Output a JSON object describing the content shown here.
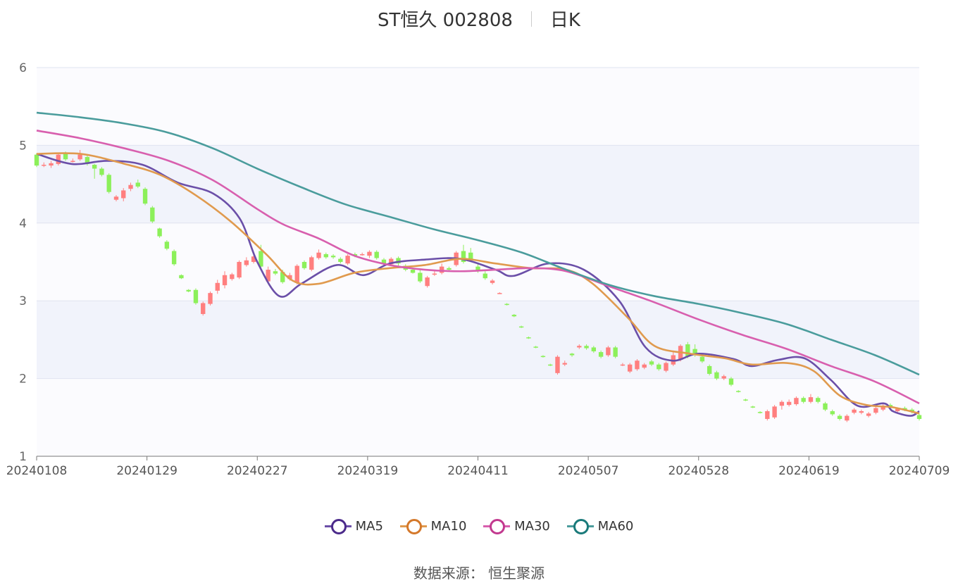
{
  "title": {
    "name": "ST恒久 002808",
    "period": "日K"
  },
  "source": {
    "label": "数据来源：",
    "value": "恒生聚源"
  },
  "chart_data": {
    "type": "candlestick",
    "title": "ST恒久 002808",
    "subtitle": "日K",
    "y_ticks": [
      "1",
      "2",
      "3",
      "4",
      "5",
      "6"
    ],
    "ylim": [
      1,
      6
    ],
    "x_ticks": [
      "20240108",
      "20240129",
      "20240227",
      "20240319",
      "20240411",
      "20240507",
      "20240528",
      "20240619",
      "20240709"
    ],
    "grid": true,
    "legend_position": "bottom",
    "colors": {
      "up": "#ff7f7f",
      "down": "#8cf05a",
      "MA5": "#6b4fa8",
      "MA10": "#e09a4e",
      "MA30": "#d85fae",
      "MA60": "#4a9c9c"
    },
    "legend": [
      {
        "name": "MA5",
        "color": "#4b2a8a"
      },
      {
        "name": "MA10",
        "color": "#d4782a"
      },
      {
        "name": "MA30",
        "color": "#c2398f"
      },
      {
        "name": "MA60",
        "color": "#1a7a7a"
      }
    ],
    "candles": [
      [
        4.88,
        4.74,
        4.9,
        4.72
      ],
      [
        4.75,
        4.75,
        4.78,
        4.72
      ],
      [
        4.74,
        4.77,
        4.8,
        4.71
      ],
      [
        4.76,
        4.88,
        4.9,
        4.74
      ],
      [
        4.9,
        4.82,
        4.92,
        4.8
      ],
      [
        4.8,
        4.8,
        4.83,
        4.78
      ],
      [
        4.82,
        4.88,
        4.94,
        4.8
      ],
      [
        4.85,
        4.76,
        4.87,
        4.74
      ],
      [
        4.75,
        4.7,
        4.76,
        4.57
      ],
      [
        4.7,
        4.62,
        4.72,
        4.6
      ],
      [
        4.62,
        4.4,
        4.64,
        4.38
      ],
      [
        4.3,
        4.34,
        4.36,
        4.28
      ],
      [
        4.32,
        4.42,
        4.45,
        4.28
      ],
      [
        4.44,
        4.49,
        4.52,
        4.41
      ],
      [
        4.52,
        4.47,
        4.56,
        4.45
      ],
      [
        4.44,
        4.25,
        4.46,
        4.23
      ],
      [
        4.2,
        4.02,
        4.22,
        4.0
      ],
      [
        3.93,
        3.83,
        3.94,
        3.81
      ],
      [
        3.76,
        3.67,
        3.78,
        3.65
      ],
      [
        3.64,
        3.47,
        3.66,
        3.45
      ],
      [
        3.33,
        3.29,
        3.34,
        3.28
      ],
      [
        3.14,
        3.12,
        3.15,
        3.11
      ],
      [
        3.14,
        2.97,
        3.16,
        2.95
      ],
      [
        2.83,
        2.97,
        2.99,
        2.81
      ],
      [
        2.96,
        3.1,
        3.12,
        2.94
      ],
      [
        3.13,
        3.23,
        3.27,
        3.09
      ],
      [
        3.2,
        3.33,
        3.38,
        3.16
      ],
      [
        3.28,
        3.34,
        3.36,
        3.26
      ],
      [
        3.3,
        3.5,
        3.52,
        3.28
      ],
      [
        3.46,
        3.52,
        3.56,
        3.44
      ],
      [
        3.5,
        3.57,
        3.6,
        3.48
      ],
      [
        3.64,
        3.44,
        3.72,
        3.42
      ],
      [
        3.25,
        3.4,
        3.44,
        3.23
      ],
      [
        3.38,
        3.35,
        3.41,
        3.33
      ],
      [
        3.37,
        3.24,
        3.4,
        3.22
      ],
      [
        3.28,
        3.33,
        3.36,
        3.26
      ],
      [
        3.23,
        3.45,
        3.47,
        3.21
      ],
      [
        3.5,
        3.42,
        3.52,
        3.4
      ],
      [
        3.4,
        3.56,
        3.58,
        3.38
      ],
      [
        3.55,
        3.62,
        3.66,
        3.53
      ],
      [
        3.6,
        3.56,
        3.62,
        3.54
      ],
      [
        3.58,
        3.56,
        3.6,
        3.54
      ],
      [
        3.54,
        3.5,
        3.56,
        3.48
      ],
      [
        3.48,
        3.58,
        3.6,
        3.46
      ],
      [
        3.6,
        3.58,
        3.62,
        3.56
      ],
      [
        3.6,
        3.6,
        3.62,
        3.58
      ],
      [
        3.58,
        3.63,
        3.65,
        3.55
      ],
      [
        3.63,
        3.55,
        3.65,
        3.53
      ],
      [
        3.53,
        3.48,
        3.55,
        3.45
      ],
      [
        3.47,
        3.54,
        3.56,
        3.45
      ],
      [
        3.55,
        3.48,
        3.57,
        3.45
      ],
      [
        3.45,
        3.4,
        3.47,
        3.38
      ],
      [
        3.4,
        3.36,
        3.42,
        3.35
      ],
      [
        3.36,
        3.25,
        3.4,
        3.23
      ],
      [
        3.19,
        3.3,
        3.32,
        3.17
      ],
      [
        3.34,
        3.35,
        3.4,
        3.32
      ],
      [
        3.36,
        3.44,
        3.48,
        3.34
      ],
      [
        3.42,
        3.4,
        3.44,
        3.38
      ],
      [
        3.46,
        3.62,
        3.64,
        3.44
      ],
      [
        3.64,
        3.5,
        3.72,
        3.48
      ],
      [
        3.62,
        3.52,
        3.68,
        3.5
      ],
      [
        3.44,
        3.38,
        3.47,
        3.36
      ],
      [
        3.35,
        3.29,
        3.38,
        3.27
      ],
      [
        3.23,
        3.26,
        3.28,
        3.21
      ],
      [
        3.1,
        3.1,
        3.11,
        3.09
      ],
      [
        2.96,
        2.95,
        2.97,
        2.94
      ],
      [
        2.82,
        2.8,
        2.83,
        2.79
      ],
      [
        2.67,
        2.66,
        2.68,
        2.65
      ],
      [
        2.53,
        2.52,
        2.54,
        2.51
      ],
      [
        2.41,
        2.4,
        2.42,
        2.39
      ],
      [
        2.29,
        2.28,
        2.3,
        2.27
      ],
      [
        2.18,
        2.17,
        2.19,
        2.16
      ],
      [
        2.07,
        2.28,
        2.3,
        2.05
      ],
      [
        2.18,
        2.2,
        2.23,
        2.16
      ],
      [
        2.32,
        2.3,
        2.33,
        2.28
      ],
      [
        2.4,
        2.42,
        2.44,
        2.38
      ],
      [
        2.42,
        2.39,
        2.44,
        2.37
      ],
      [
        2.4,
        2.35,
        2.42,
        2.33
      ],
      [
        2.34,
        2.28,
        2.36,
        2.26
      ],
      [
        2.3,
        2.4,
        2.42,
        2.28
      ],
      [
        2.4,
        2.28,
        2.42,
        2.26
      ],
      [
        2.18,
        2.18,
        2.2,
        2.16
      ],
      [
        2.09,
        2.18,
        2.2,
        2.07
      ],
      [
        2.12,
        2.23,
        2.25,
        2.1
      ],
      [
        2.14,
        2.18,
        2.2,
        2.12
      ],
      [
        2.22,
        2.18,
        2.24,
        2.16
      ],
      [
        2.18,
        2.12,
        2.2,
        2.1
      ],
      [
        2.1,
        2.2,
        2.22,
        2.08
      ],
      [
        2.18,
        2.3,
        2.36,
        2.16
      ],
      [
        2.24,
        2.42,
        2.44,
        2.22
      ],
      [
        2.44,
        2.28,
        2.47,
        2.26
      ],
      [
        2.38,
        2.3,
        2.44,
        2.28
      ],
      [
        2.28,
        2.22,
        2.3,
        2.2
      ],
      [
        2.16,
        2.06,
        2.18,
        2.04
      ],
      [
        2.08,
        2.0,
        2.1,
        1.98
      ],
      [
        2.0,
        2.03,
        2.05,
        1.98
      ],
      [
        2.0,
        1.92,
        2.02,
        1.9
      ],
      [
        1.84,
        1.83,
        1.85,
        1.82
      ],
      [
        1.73,
        1.72,
        1.74,
        1.71
      ],
      [
        1.64,
        1.63,
        1.65,
        1.62
      ],
      [
        1.57,
        1.56,
        1.58,
        1.55
      ],
      [
        1.48,
        1.58,
        1.6,
        1.46
      ],
      [
        1.5,
        1.64,
        1.66,
        1.48
      ],
      [
        1.65,
        1.7,
        1.72,
        1.6
      ],
      [
        1.66,
        1.7,
        1.73,
        1.64
      ],
      [
        1.67,
        1.75,
        1.77,
        1.65
      ],
      [
        1.75,
        1.7,
        1.77,
        1.68
      ],
      [
        1.7,
        1.76,
        1.8,
        1.68
      ],
      [
        1.75,
        1.7,
        1.77,
        1.68
      ],
      [
        1.68,
        1.6,
        1.7,
        1.58
      ],
      [
        1.58,
        1.54,
        1.6,
        1.52
      ],
      [
        1.52,
        1.48,
        1.54,
        1.46
      ],
      [
        1.46,
        1.52,
        1.54,
        1.44
      ],
      [
        1.56,
        1.6,
        1.62,
        1.54
      ],
      [
        1.56,
        1.58,
        1.6,
        1.54
      ],
      [
        1.52,
        1.55,
        1.57,
        1.5
      ],
      [
        1.56,
        1.62,
        1.64,
        1.54
      ],
      [
        1.6,
        1.65,
        1.67,
        1.58
      ],
      [
        1.66,
        1.62,
        1.68,
        1.6
      ],
      [
        1.58,
        1.61,
        1.63,
        1.56
      ],
      [
        1.62,
        1.6,
        1.64,
        1.58
      ],
      [
        1.6,
        1.57,
        1.62,
        1.55
      ],
      [
        1.53,
        1.48,
        1.55,
        1.46
      ]
    ],
    "series": [
      {
        "name": "MA5",
        "values": [
          [
            0,
            4.89
          ],
          [
            0.04,
            4.76
          ],
          [
            0.08,
            4.8
          ],
          [
            0.12,
            4.75
          ],
          [
            0.16,
            4.52
          ],
          [
            0.2,
            4.38
          ],
          [
            0.23,
            4.06
          ],
          [
            0.25,
            3.5
          ],
          [
            0.275,
            3.06
          ],
          [
            0.3,
            3.22
          ],
          [
            0.34,
            3.46
          ],
          [
            0.37,
            3.33
          ],
          [
            0.4,
            3.48
          ],
          [
            0.44,
            3.53
          ],
          [
            0.48,
            3.54
          ],
          [
            0.52,
            3.4
          ],
          [
            0.54,
            3.32
          ],
          [
            0.58,
            3.48
          ],
          [
            0.62,
            3.4
          ],
          [
            0.66,
            3.0
          ],
          [
            0.69,
            2.4
          ],
          [
            0.72,
            2.23
          ],
          [
            0.75,
            2.32
          ],
          [
            0.79,
            2.25
          ],
          [
            0.81,
            2.16
          ],
          [
            0.84,
            2.24
          ],
          [
            0.87,
            2.26
          ],
          [
            0.9,
            1.98
          ],
          [
            0.93,
            1.65
          ],
          [
            0.96,
            1.68
          ],
          [
            0.97,
            1.58
          ],
          [
            0.99,
            1.52
          ],
          [
            1.0,
            1.58
          ]
        ]
      },
      {
        "name": "MA10",
        "values": [
          [
            0,
            4.89
          ],
          [
            0.05,
            4.89
          ],
          [
            0.1,
            4.76
          ],
          [
            0.14,
            4.62
          ],
          [
            0.18,
            4.36
          ],
          [
            0.22,
            4.02
          ],
          [
            0.26,
            3.6
          ],
          [
            0.29,
            3.26
          ],
          [
            0.32,
            3.22
          ],
          [
            0.36,
            3.36
          ],
          [
            0.4,
            3.42
          ],
          [
            0.44,
            3.46
          ],
          [
            0.48,
            3.54
          ],
          [
            0.52,
            3.48
          ],
          [
            0.56,
            3.42
          ],
          [
            0.6,
            3.4
          ],
          [
            0.63,
            3.22
          ],
          [
            0.67,
            2.78
          ],
          [
            0.7,
            2.42
          ],
          [
            0.74,
            2.32
          ],
          [
            0.78,
            2.26
          ],
          [
            0.81,
            2.18
          ],
          [
            0.85,
            2.2
          ],
          [
            0.88,
            2.1
          ],
          [
            0.91,
            1.78
          ],
          [
            0.94,
            1.66
          ],
          [
            0.97,
            1.63
          ],
          [
            1.0,
            1.55
          ]
        ]
      },
      {
        "name": "MA30",
        "values": [
          [
            0,
            5.19
          ],
          [
            0.05,
            5.09
          ],
          [
            0.1,
            4.96
          ],
          [
            0.15,
            4.8
          ],
          [
            0.2,
            4.55
          ],
          [
            0.25,
            4.18
          ],
          [
            0.28,
            3.98
          ],
          [
            0.32,
            3.8
          ],
          [
            0.36,
            3.58
          ],
          [
            0.4,
            3.46
          ],
          [
            0.44,
            3.4
          ],
          [
            0.48,
            3.38
          ],
          [
            0.52,
            3.4
          ],
          [
            0.56,
            3.42
          ],
          [
            0.6,
            3.38
          ],
          [
            0.65,
            3.18
          ],
          [
            0.7,
            2.98
          ],
          [
            0.75,
            2.76
          ],
          [
            0.8,
            2.56
          ],
          [
            0.85,
            2.38
          ],
          [
            0.9,
            2.16
          ],
          [
            0.95,
            1.96
          ],
          [
            1.0,
            1.68
          ]
        ]
      },
      {
        "name": "MA60",
        "values": [
          [
            0,
            5.42
          ],
          [
            0.05,
            5.36
          ],
          [
            0.1,
            5.28
          ],
          [
            0.15,
            5.16
          ],
          [
            0.2,
            4.96
          ],
          [
            0.25,
            4.7
          ],
          [
            0.3,
            4.46
          ],
          [
            0.35,
            4.24
          ],
          [
            0.4,
            4.08
          ],
          [
            0.45,
            3.92
          ],
          [
            0.5,
            3.78
          ],
          [
            0.55,
            3.62
          ],
          [
            0.6,
            3.4
          ],
          [
            0.65,
            3.2
          ],
          [
            0.7,
            3.06
          ],
          [
            0.75,
            2.96
          ],
          [
            0.8,
            2.84
          ],
          [
            0.85,
            2.7
          ],
          [
            0.9,
            2.5
          ],
          [
            0.95,
            2.3
          ],
          [
            1.0,
            2.05
          ]
        ]
      }
    ]
  }
}
